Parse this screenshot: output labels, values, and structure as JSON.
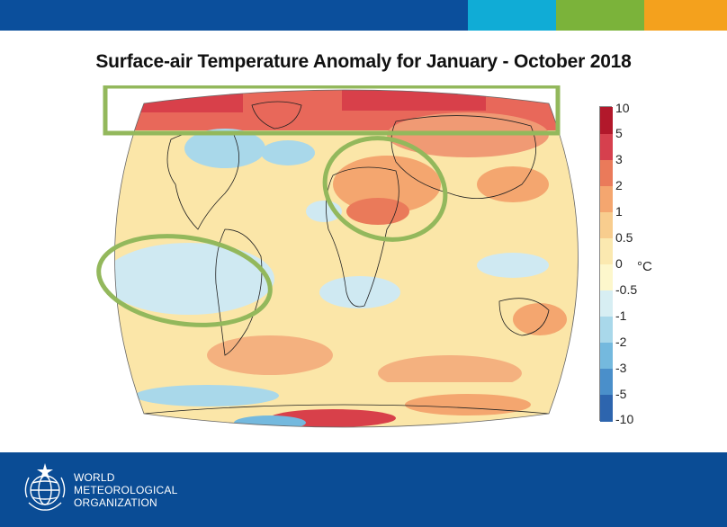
{
  "header": {
    "color_bands": [
      "#0b4f9c",
      "#10acd6",
      "#7bb33a",
      "#f4a11d"
    ]
  },
  "title": "Surface-air Temperature Anomaly for January - October 2018",
  "legend": {
    "unit": "°C",
    "labels": [
      "10",
      "5",
      "3",
      "2",
      "1",
      "0.5",
      "0",
      "-0.5",
      "-1",
      "-2",
      "-3",
      "-5",
      "-10"
    ],
    "colors": [
      "#b2182b",
      "#d6404e",
      "#ea7a5a",
      "#f4a66f",
      "#f8cd8e",
      "#fbe9b0",
      "#fdf7cc",
      "#d7eef3",
      "#a9d8ea",
      "#74b9de",
      "#4a8fca",
      "#2d65ae"
    ]
  },
  "map": {
    "annotations": [
      {
        "shape": "rectangle",
        "color": "#93b85c"
      },
      {
        "shape": "ellipse",
        "color": "#93b85c"
      },
      {
        "shape": "ellipse",
        "color": "#93b85c"
      }
    ]
  },
  "footer": {
    "background": "#0a4c95",
    "org_line1": "WORLD",
    "org_line2": "METEOROLOGICAL",
    "org_line3": "ORGANIZATION"
  }
}
